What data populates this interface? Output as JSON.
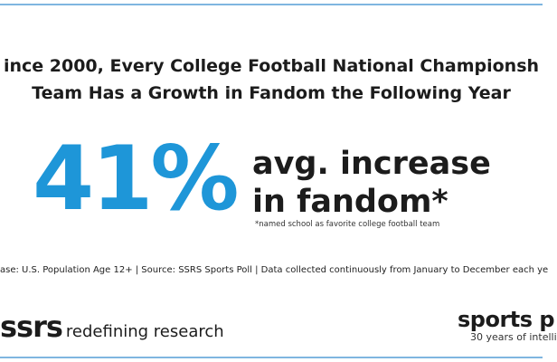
{
  "title": {
    "line1": "ince 2000, Every College Football National Championsh",
    "line2": "Team Has a Growth in Fandom the Following Year"
  },
  "stat": {
    "value": "41%",
    "label_line1": "avg. increase",
    "label_line2": "in fandom*",
    "footnote": "*named school as favorite college football team"
  },
  "source": "ase: U.S. Population Age 12+ | Source: SSRS Sports Poll | Data collected continuously from January to December each ye",
  "logo_left": {
    "mark": "ssrs",
    "tagline": "redefining research"
  },
  "logo_right": {
    "mark": "sports p",
    "tagline": "30 years of intelli"
  },
  "colors": {
    "accent": "#1e96d8",
    "rule": "#7fb6e0",
    "text": "#1c1c1c"
  }
}
